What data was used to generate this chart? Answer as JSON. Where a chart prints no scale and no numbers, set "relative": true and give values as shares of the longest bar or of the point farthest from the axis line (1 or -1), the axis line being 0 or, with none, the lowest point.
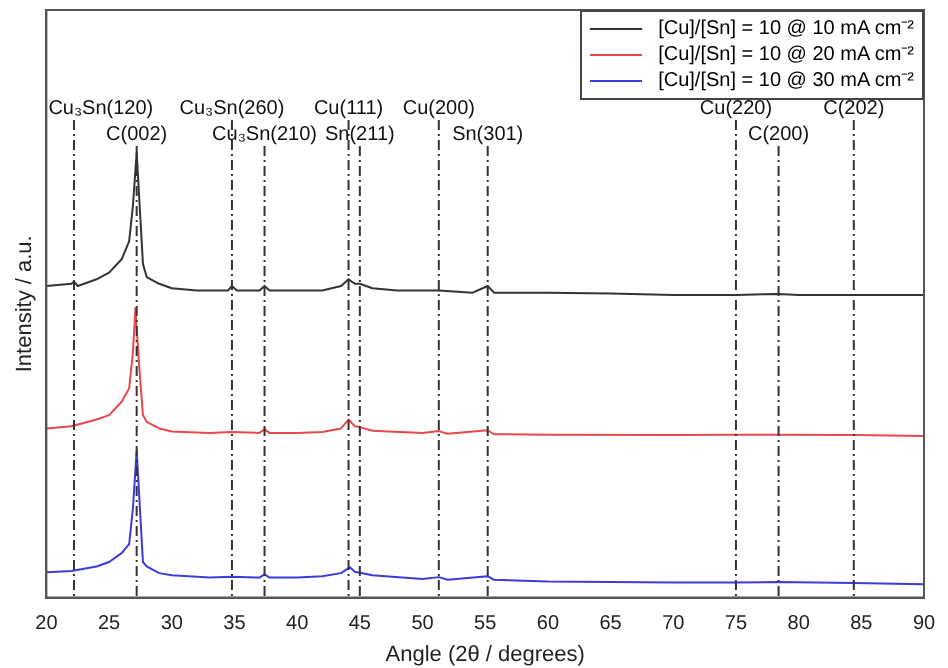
{
  "chart_data": {
    "type": "line",
    "relative": true,
    "xlabel": "Angle (2θ / degrees)",
    "ylabel": "Intensity / a.u.",
    "xlim": [
      20,
      90
    ],
    "xticks": [
      20,
      25,
      30,
      35,
      40,
      45,
      50,
      55,
      60,
      65,
      70,
      75,
      80,
      85,
      90
    ],
    "grid": false,
    "legend": "top right",
    "marker": "none",
    "line_style": "solid",
    "tick_labels": "x",
    "series": [
      {
        "name": "[Cu]/[Sn] = 10 @ 10 mA cm⁻²",
        "color": "#333333",
        "x": [
          20,
          22,
          22.2,
          22.5,
          24,
          25,
          26,
          26.6,
          26.9,
          27.2,
          27.5,
          27.7,
          28,
          29,
          30,
          32,
          34.5,
          34.8,
          35.2,
          37,
          37.4,
          37.8,
          40,
          42,
          43.5,
          44.1,
          44.6,
          45,
          46,
          48,
          51.3,
          54,
          55.2,
          55.7,
          60,
          65,
          70,
          75,
          78.4,
          80,
          84.4,
          90
        ],
        "values": [
          0.7,
          0.705,
          0.71,
          0.7,
          0.715,
          0.73,
          0.76,
          0.8,
          0.88,
          1,
          0.85,
          0.75,
          0.72,
          0.705,
          0.695,
          0.69,
          0.69,
          0.7,
          0.69,
          0.69,
          0.7,
          0.69,
          0.69,
          0.69,
          0.7,
          0.715,
          0.705,
          0.705,
          0.695,
          0.69,
          0.69,
          0.685,
          0.7,
          0.685,
          0.685,
          0.683,
          0.68,
          0.68,
          0.682,
          0.68,
          0.68,
          0.68
        ]
      },
      {
        "name": "[Cu]/[Sn] = 10 @ 20 mA cm⁻²",
        "color": "#e8474c",
        "x": [
          20,
          22,
          24,
          25,
          26,
          26.6,
          26.9,
          27.1,
          27.4,
          27.7,
          28,
          29,
          30,
          33,
          34.8,
          37,
          37.4,
          37.8,
          40,
          42,
          43.5,
          44.1,
          44.6,
          45,
          46,
          50,
          51.3,
          52,
          55.2,
          55.7,
          60,
          70,
          75,
          78.4,
          84.4,
          90
        ],
        "values": [
          0.38,
          0.385,
          0.4,
          0.41,
          0.44,
          0.47,
          0.55,
          0.65,
          0.52,
          0.41,
          0.395,
          0.38,
          0.373,
          0.37,
          0.372,
          0.37,
          0.378,
          0.37,
          0.37,
          0.372,
          0.38,
          0.4,
          0.385,
          0.383,
          0.375,
          0.37,
          0.374,
          0.368,
          0.376,
          0.367,
          0.366,
          0.365,
          0.366,
          0.366,
          0.365,
          0.363
        ]
      },
      {
        "name": "[Cu]/[Sn] = 10 @ 30 mA cm⁻²",
        "color": "#3b3bd9",
        "x": [
          20,
          22,
          24,
          25,
          26,
          26.6,
          26.9,
          27.2,
          27.5,
          27.7,
          28,
          29,
          30,
          33,
          34.8,
          37,
          37.4,
          37.8,
          40,
          42,
          43.5,
          44.2,
          44.6,
          45,
          46,
          50,
          51.3,
          52,
          55.2,
          55.7,
          60,
          70,
          75,
          78.4,
          84.4,
          90
        ],
        "values": [
          0.057,
          0.06,
          0.07,
          0.08,
          0.1,
          0.12,
          0.2,
          0.33,
          0.18,
          0.08,
          0.07,
          0.055,
          0.05,
          0.045,
          0.047,
          0.045,
          0.052,
          0.045,
          0.045,
          0.048,
          0.055,
          0.068,
          0.058,
          0.056,
          0.05,
          0.042,
          0.046,
          0.04,
          0.048,
          0.04,
          0.036,
          0.034,
          0.034,
          0.035,
          0.033,
          0.03
        ]
      }
    ],
    "ref_lines": [
      {
        "axis": "x",
        "value": 22.2,
        "label": "Cu₃Sn(120)",
        "color": "#333333",
        "line_style": "dashed"
      },
      {
        "axis": "x",
        "value": 27.2,
        "label": "C(002)",
        "color": "#333333",
        "line_style": "dashed"
      },
      {
        "axis": "x",
        "value": 34.8,
        "label": "Cu₃Sn(260)",
        "color": "#333333",
        "line_style": "dashed"
      },
      {
        "axis": "x",
        "value": 37.4,
        "label": "Cu₃Sn(210)",
        "color": "#333333",
        "line_style": "dashed"
      },
      {
        "axis": "x",
        "value": 44.1,
        "label": "Cu(111)",
        "color": "#333333",
        "line_style": "dashed"
      },
      {
        "axis": "x",
        "value": 45.0,
        "label": "Sn(211)",
        "color": "#333333",
        "line_style": "dashed"
      },
      {
        "axis": "x",
        "value": 51.3,
        "label": "Cu(200)",
        "color": "#333333",
        "line_style": "dashed"
      },
      {
        "axis": "x",
        "value": 55.2,
        "label": "Sn(301)",
        "color": "#333333",
        "line_style": "dashed"
      },
      {
        "axis": "x",
        "value": 75.0,
        "label": "Cu(220)",
        "color": "#333333",
        "line_style": "dashed"
      },
      {
        "axis": "x",
        "value": 78.4,
        "label": "C(200)",
        "color": "#333333",
        "line_style": "dashed"
      },
      {
        "axis": "x",
        "value": 84.4,
        "label": "C(202)",
        "color": "#333333",
        "line_style": "dashed"
      }
    ]
  }
}
